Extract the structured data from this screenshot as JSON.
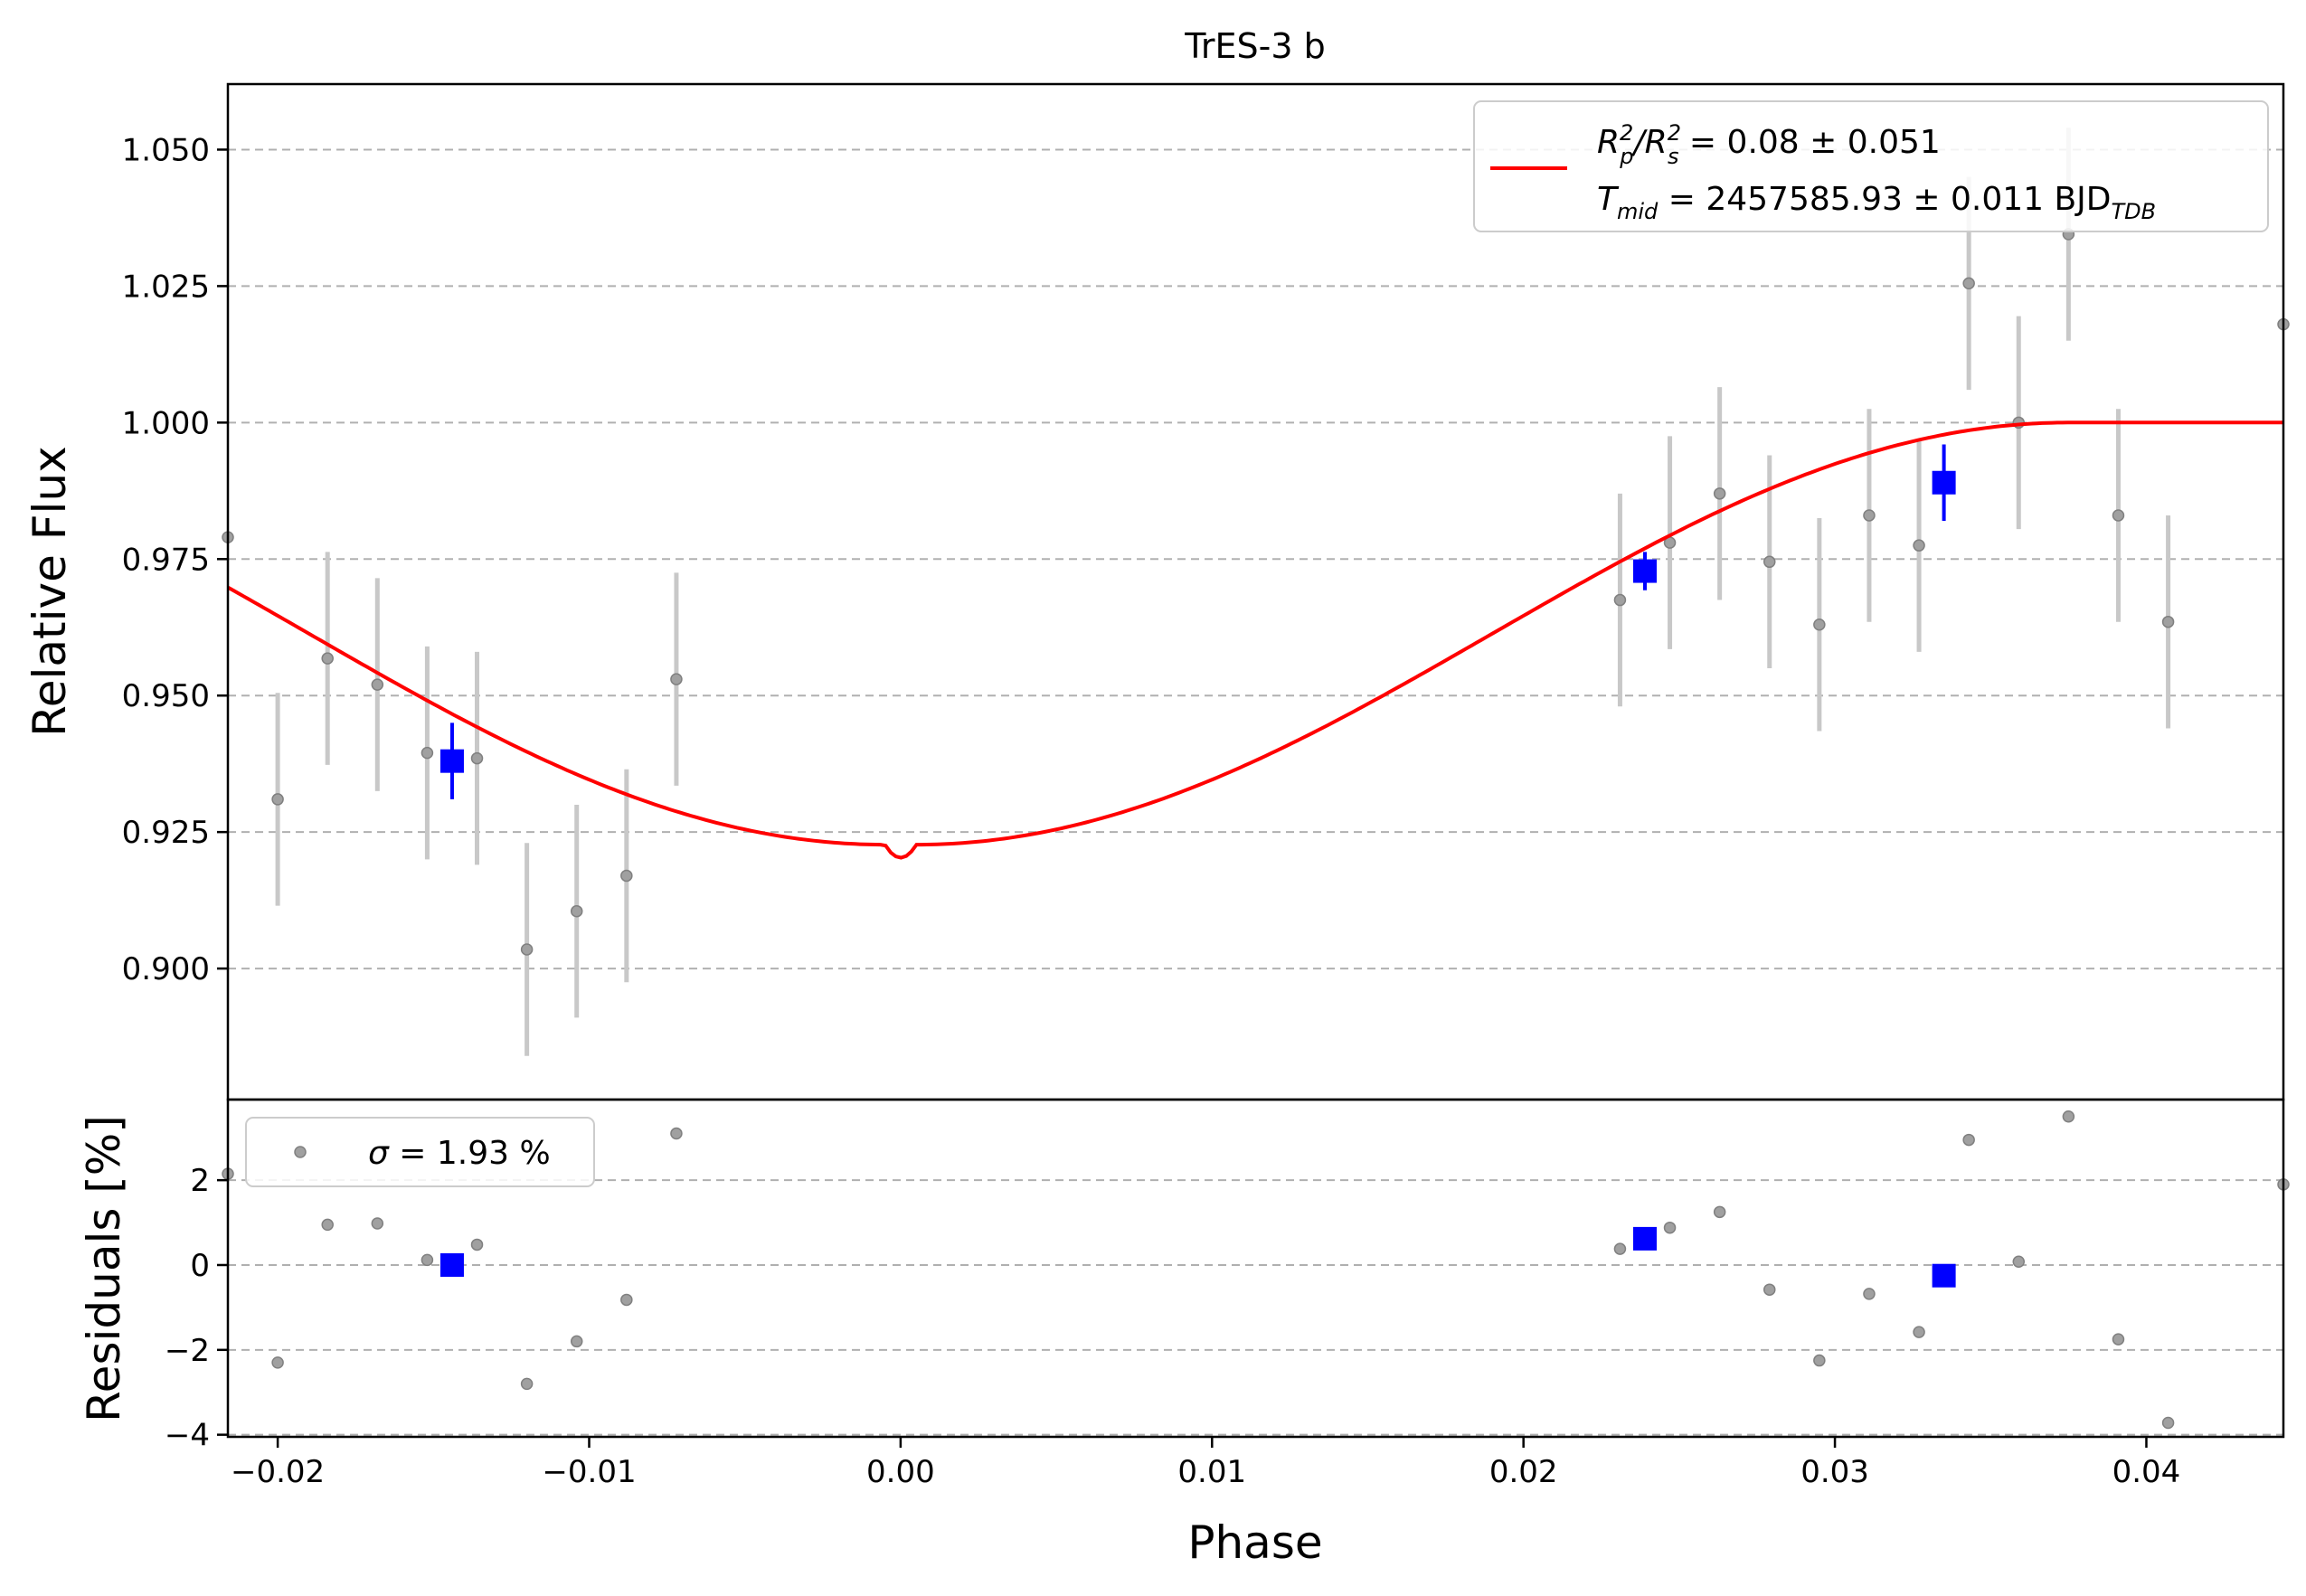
{
  "chart_data": [
    {
      "type": "scatter",
      "panel": "main",
      "title": "TrES-3 b",
      "ylabel": "Relative Flux",
      "xlim": [
        -0.0216,
        0.0444
      ],
      "ylim": [
        0.876,
        1.062
      ],
      "yticks": [
        0.9,
        0.925,
        0.95,
        0.975,
        1.0,
        1.025,
        1.05
      ],
      "ytick_labels": [
        "0.900",
        "0.925",
        "0.950",
        "0.975",
        "1.000",
        "1.025",
        "1.050"
      ],
      "grid": "y-dashed",
      "legend_position": "top-right",
      "legend": {
        "line1_base": "R",
        "line1_sub1": "p",
        "line1_sup1": "2",
        "line1_slash": "/R",
        "line1_sub2": "s",
        "line1_sup2": "2",
        "line1_value": " = 0.08 ± 0.051",
        "line2_base": "T",
        "line2_sub": "mid",
        "line2_value": " = 2457585.93 ± 0.011 BJD",
        "line2_unit_sub": "TDB"
      },
      "raw_points": [
        {
          "x": -0.0216,
          "y": 0.979,
          "err": 0.0
        },
        {
          "x": -0.02,
          "y": 0.931,
          "err": 0.0195
        },
        {
          "x": -0.0184,
          "y": 0.9568,
          "err": 0.0195
        },
        {
          "x": -0.0168,
          "y": 0.952,
          "err": 0.0195
        },
        {
          "x": -0.0152,
          "y": 0.9395,
          "err": 0.0195
        },
        {
          "x": -0.0136,
          "y": 0.9385,
          "err": 0.0195
        },
        {
          "x": -0.012,
          "y": 0.9035,
          "err": 0.0195
        },
        {
          "x": -0.0104,
          "y": 0.9105,
          "err": 0.0195
        },
        {
          "x": -0.0088,
          "y": 0.917,
          "err": 0.0195
        },
        {
          "x": -0.0072,
          "y": 0.953,
          "err": 0.0195
        },
        {
          "x": 0.0231,
          "y": 0.9675,
          "err": 0.0195
        },
        {
          "x": 0.0247,
          "y": 0.978,
          "err": 0.0195
        },
        {
          "x": 0.0263,
          "y": 0.987,
          "err": 0.0195
        },
        {
          "x": 0.0279,
          "y": 0.9745,
          "err": 0.0195
        },
        {
          "x": 0.0295,
          "y": 0.963,
          "err": 0.0195
        },
        {
          "x": 0.0311,
          "y": 0.983,
          "err": 0.0195
        },
        {
          "x": 0.0327,
          "y": 0.9775,
          "err": 0.0195
        },
        {
          "x": 0.0343,
          "y": 1.0255,
          "err": 0.0195
        },
        {
          "x": 0.0359,
          "y": 1.0,
          "err": 0.0195
        },
        {
          "x": 0.0375,
          "y": 1.0345,
          "err": 0.0195
        },
        {
          "x": 0.0391,
          "y": 0.983,
          "err": 0.0195
        },
        {
          "x": 0.0407,
          "y": 0.9635,
          "err": 0.0195
        },
        {
          "x": 0.0444,
          "y": 1.018,
          "err": 0.0
        }
      ],
      "binned_points": [
        {
          "x": -0.0144,
          "y": 0.938,
          "err": 0.007
        },
        {
          "x": 0.0239,
          "y": 0.9728,
          "err": 0.0035
        },
        {
          "x": 0.0335,
          "y": 0.989,
          "err": 0.007
        }
      ],
      "model": {
        "color": "#ff0000",
        "transit_depth": 0.0797,
        "t14": 0.075,
        "t12": 0.037
      },
      "colors": {
        "raw": "#808080",
        "raw_err": "#c8c8c8",
        "binned": "#0000ff",
        "grid": "#b0b0b0"
      }
    },
    {
      "type": "scatter",
      "panel": "residuals",
      "xlabel": "Phase",
      "ylabel": "Residuals [%]",
      "xlim": [
        -0.0216,
        0.0444
      ],
      "ylim": [
        -4.05,
        3.9
      ],
      "xticks": [
        -0.02,
        -0.01,
        0.0,
        0.01,
        0.02,
        0.03,
        0.04
      ],
      "xtick_labels": [
        "−0.02",
        "−0.01",
        "0.00",
        "0.01",
        "0.02",
        "0.03",
        "0.04"
      ],
      "yticks": [
        -4,
        -2,
        0,
        2
      ],
      "ytick_labels": [
        "−4",
        "−2",
        "0",
        "2"
      ],
      "grid": "y-dashed",
      "legend_position": "top-left",
      "legend": {
        "symbol": "σ",
        "value": " = 1.93 %"
      },
      "raw_points": [
        {
          "x": -0.0216,
          "y": 2.15
        },
        {
          "x": -0.02,
          "y": -2.3
        },
        {
          "x": -0.0184,
          "y": 0.95
        },
        {
          "x": -0.0168,
          "y": 0.98
        },
        {
          "x": -0.0152,
          "y": 0.12
        },
        {
          "x": -0.0136,
          "y": 0.48
        },
        {
          "x": -0.012,
          "y": -2.8
        },
        {
          "x": -0.0104,
          "y": -1.8
        },
        {
          "x": -0.0088,
          "y": -0.82
        },
        {
          "x": -0.0072,
          "y": 3.1
        },
        {
          "x": 0.0231,
          "y": 0.38
        },
        {
          "x": 0.0247,
          "y": 0.88
        },
        {
          "x": 0.0263,
          "y": 1.25
        },
        {
          "x": 0.0279,
          "y": -0.58
        },
        {
          "x": 0.0295,
          "y": -2.25
        },
        {
          "x": 0.0311,
          "y": -0.68
        },
        {
          "x": 0.0327,
          "y": -1.58
        },
        {
          "x": 0.0343,
          "y": 2.95
        },
        {
          "x": 0.0359,
          "y": 0.08
        },
        {
          "x": 0.0375,
          "y": 3.5
        },
        {
          "x": 0.0391,
          "y": -1.75
        },
        {
          "x": 0.0407,
          "y": -3.72
        },
        {
          "x": 0.0444,
          "y": 1.9
        }
      ],
      "binned_points": [
        {
          "x": -0.0144,
          "y": 0.0
        },
        {
          "x": 0.0239,
          "y": 0.62
        },
        {
          "x": 0.0335,
          "y": -0.25
        }
      ]
    }
  ]
}
